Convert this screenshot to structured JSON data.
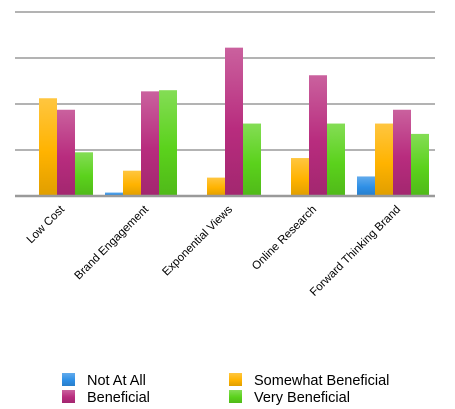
{
  "chart_data": {
    "type": "bar",
    "title": "",
    "xlabel": "",
    "ylabel": "",
    "categories": [
      "Low Cost",
      "Brand Engagement",
      "Exponential Views",
      "Online Research",
      "Forward Thinking Brand"
    ],
    "series": [
      {
        "name": "Not At All",
        "values": [
          0,
          0.15,
          0,
          0,
          0.85
        ]
      },
      {
        "name": "Somewhat Beneficial",
        "values": [
          4.25,
          1.1,
          0.8,
          1.65,
          3.15
        ]
      },
      {
        "name": "Beneficial",
        "values": [
          3.75,
          4.55,
          6.45,
          5.25,
          3.75
        ]
      },
      {
        "name": "Very Beneficial",
        "values": [
          1.9,
          4.6,
          3.15,
          3.15,
          2.7
        ]
      }
    ],
    "ylim": [
      0,
      8
    ],
    "y_gridlines": [
      0,
      2,
      4,
      6,
      8
    ],
    "show_y_tick_labels": false,
    "grid": true,
    "legend_position": "bottom",
    "colors": {
      "Not At All": "#2e8fe6",
      "Somewhat Beneficial": "#ffb300",
      "Beneficial": "#b82c7e",
      "Very Beneficial": "#5bd21c",
      "grid": "#b3b3b3",
      "axis": "#9a9a9a"
    }
  }
}
